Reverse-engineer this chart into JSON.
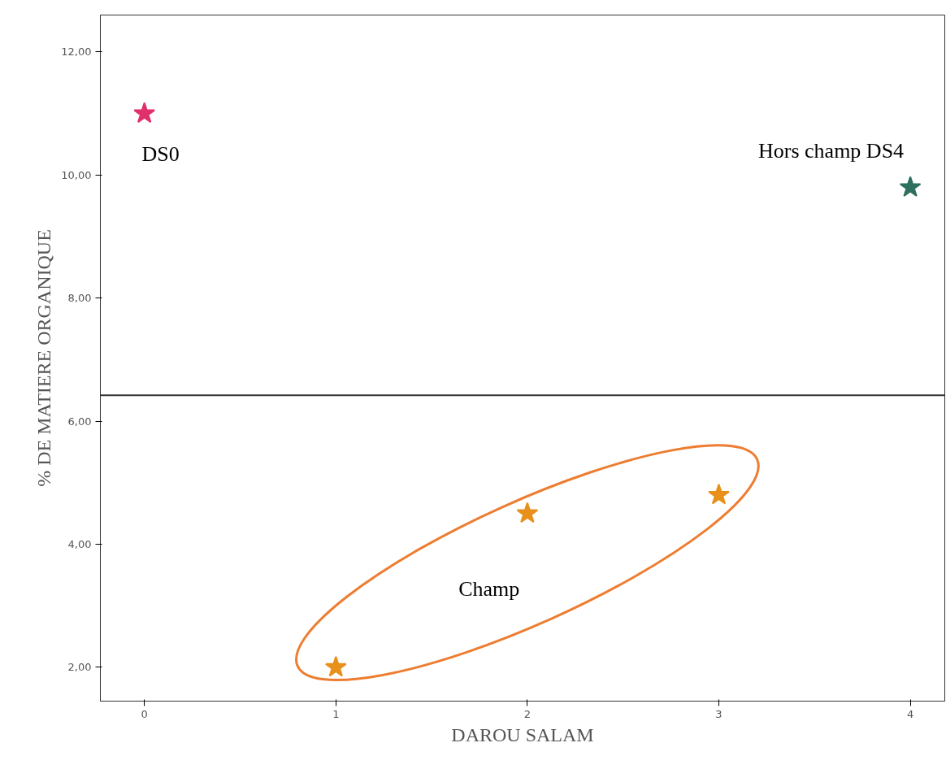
{
  "chart_data": {
    "type": "scatter",
    "xlabel": "DAROU SALAM",
    "ylabel": "% DE MATIERE ORGANIQUE",
    "xlim": [
      -0.23,
      4.18
    ],
    "ylim": [
      1.45,
      12.6
    ],
    "xticks": [
      0,
      1,
      2,
      3,
      4
    ],
    "yticks": [
      {
        "value": 2,
        "label": "2,00"
      },
      {
        "value": 4,
        "label": "4,00"
      },
      {
        "value": 6,
        "label": "6,00"
      },
      {
        "value": 8,
        "label": "8,00"
      },
      {
        "value": 10,
        "label": "10,00"
      },
      {
        "value": 12,
        "label": "12,00"
      }
    ],
    "marker": "star",
    "grid": false,
    "series": [
      {
        "name": "DS0",
        "color": "#e0306a",
        "x": [
          0
        ],
        "values": [
          11.0
        ]
      },
      {
        "name": "Hors champ DS4",
        "color": "#2f6f5f",
        "x": [
          4
        ],
        "values": [
          9.8
        ]
      },
      {
        "name": "Champ",
        "color": "#e8901a",
        "x": [
          1,
          2,
          3
        ],
        "values": [
          2.0,
          4.5,
          4.8
        ]
      }
    ],
    "ref_lines": [
      {
        "axis": "y",
        "value": 6.42,
        "color": "#333333"
      }
    ]
  }
}
